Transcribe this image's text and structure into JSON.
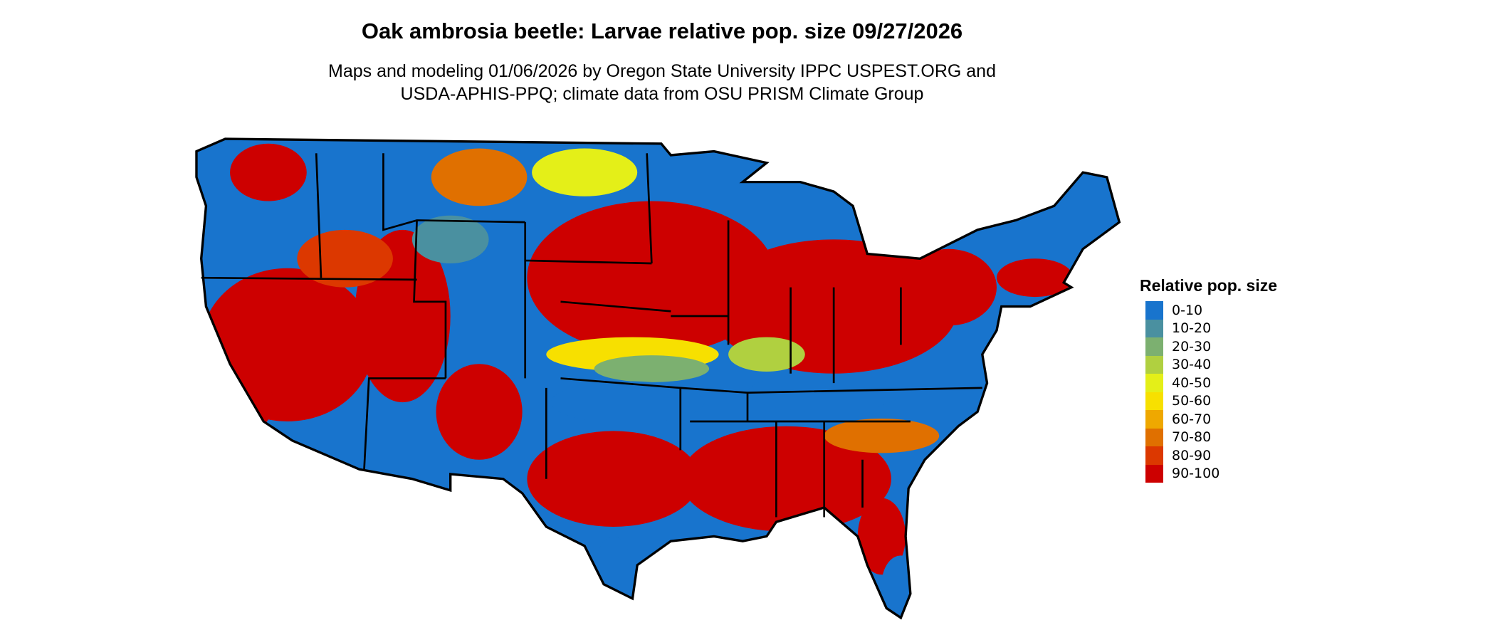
{
  "title": "Oak ambrosia beetle: Larvae relative pop. size 09/27/2026",
  "subtitle_line1": "Maps and modeling 01/06/2026 by Oregon State University IPPC USPEST.ORG and",
  "subtitle_line2": "USDA-APHIS-PPQ; climate data from OSU PRISM Climate Group",
  "legend": {
    "title": "Relative pop. size",
    "items": [
      {
        "label": "0-10",
        "color": "#1874cd"
      },
      {
        "label": "10-20",
        "color": "#4a90a0"
      },
      {
        "label": "20-30",
        "color": "#7cb070"
      },
      {
        "label": "30-40",
        "color": "#b0d040"
      },
      {
        "label": "40-50",
        "color": "#e4ef18"
      },
      {
        "label": "50-60",
        "color": "#f7e000"
      },
      {
        "label": "60-70",
        "color": "#efa800"
      },
      {
        "label": "70-80",
        "color": "#e07000"
      },
      {
        "label": "80-90",
        "color": "#dc3800"
      },
      {
        "label": "90-100",
        "color": "#cd0000"
      }
    ]
  }
}
